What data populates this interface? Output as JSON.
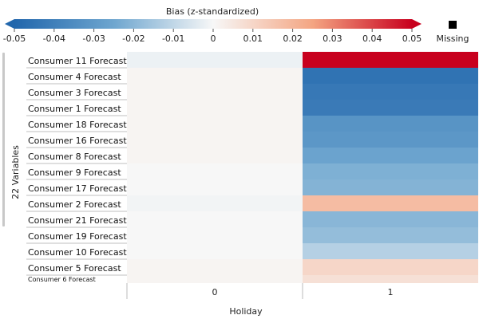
{
  "chart_data": {
    "type": "heatmap",
    "colorbar": {
      "title": "Bias (z-standardized)",
      "min": -0.05,
      "max": 0.05,
      "ticks": [
        "-0.05",
        "-0.04",
        "-0.03",
        "-0.02",
        "-0.01",
        "0",
        "0.01",
        "0.02",
        "0.03",
        "0.04",
        "0.05"
      ],
      "missing_label": "Missing",
      "colors": {
        "negative": "#2166ac",
        "zero": "#f7f7f7",
        "positive": "#c8001e",
        "missing": "#000000"
      }
    },
    "y_axis_title": "22 Variables",
    "x_axis_title": "Holiday",
    "x_categories": [
      "0",
      "1"
    ],
    "rows": [
      {
        "label": "Consumer 11 Forecast",
        "values": [
          -0.002,
          0.05
        ]
      },
      {
        "label": "Consumer 4 Forecast",
        "values": [
          0.001,
          -0.045
        ]
      },
      {
        "label": "Consumer 3 Forecast",
        "values": [
          0.001,
          -0.043
        ]
      },
      {
        "label": "Consumer 1 Forecast",
        "values": [
          0.001,
          -0.042
        ]
      },
      {
        "label": "Consumer 18 Forecast",
        "values": [
          0.001,
          -0.032
        ]
      },
      {
        "label": "Consumer 16 Forecast",
        "values": [
          0.001,
          -0.031
        ]
      },
      {
        "label": "Consumer 8 Forecast",
        "values": [
          0.001,
          -0.026
        ]
      },
      {
        "label": "Consumer 9 Forecast",
        "values": [
          0.0,
          -0.022
        ]
      },
      {
        "label": "Consumer 17 Forecast",
        "values": [
          0.0,
          -0.021
        ]
      },
      {
        "label": "Consumer 2 Forecast",
        "values": [
          -0.001,
          0.018
        ]
      },
      {
        "label": "Consumer 21 Forecast",
        "values": [
          0.0,
          -0.02
        ]
      },
      {
        "label": "Consumer 19 Forecast",
        "values": [
          0.0,
          -0.018
        ]
      },
      {
        "label": "Consumer 10 Forecast",
        "values": [
          0.0,
          -0.012
        ]
      },
      {
        "label": "Consumer 5 Forecast",
        "values": [
          0.001,
          0.01
        ]
      },
      {
        "label": "Consumer 6 Forecast",
        "values": [
          0.001,
          0.007
        ]
      }
    ]
  }
}
